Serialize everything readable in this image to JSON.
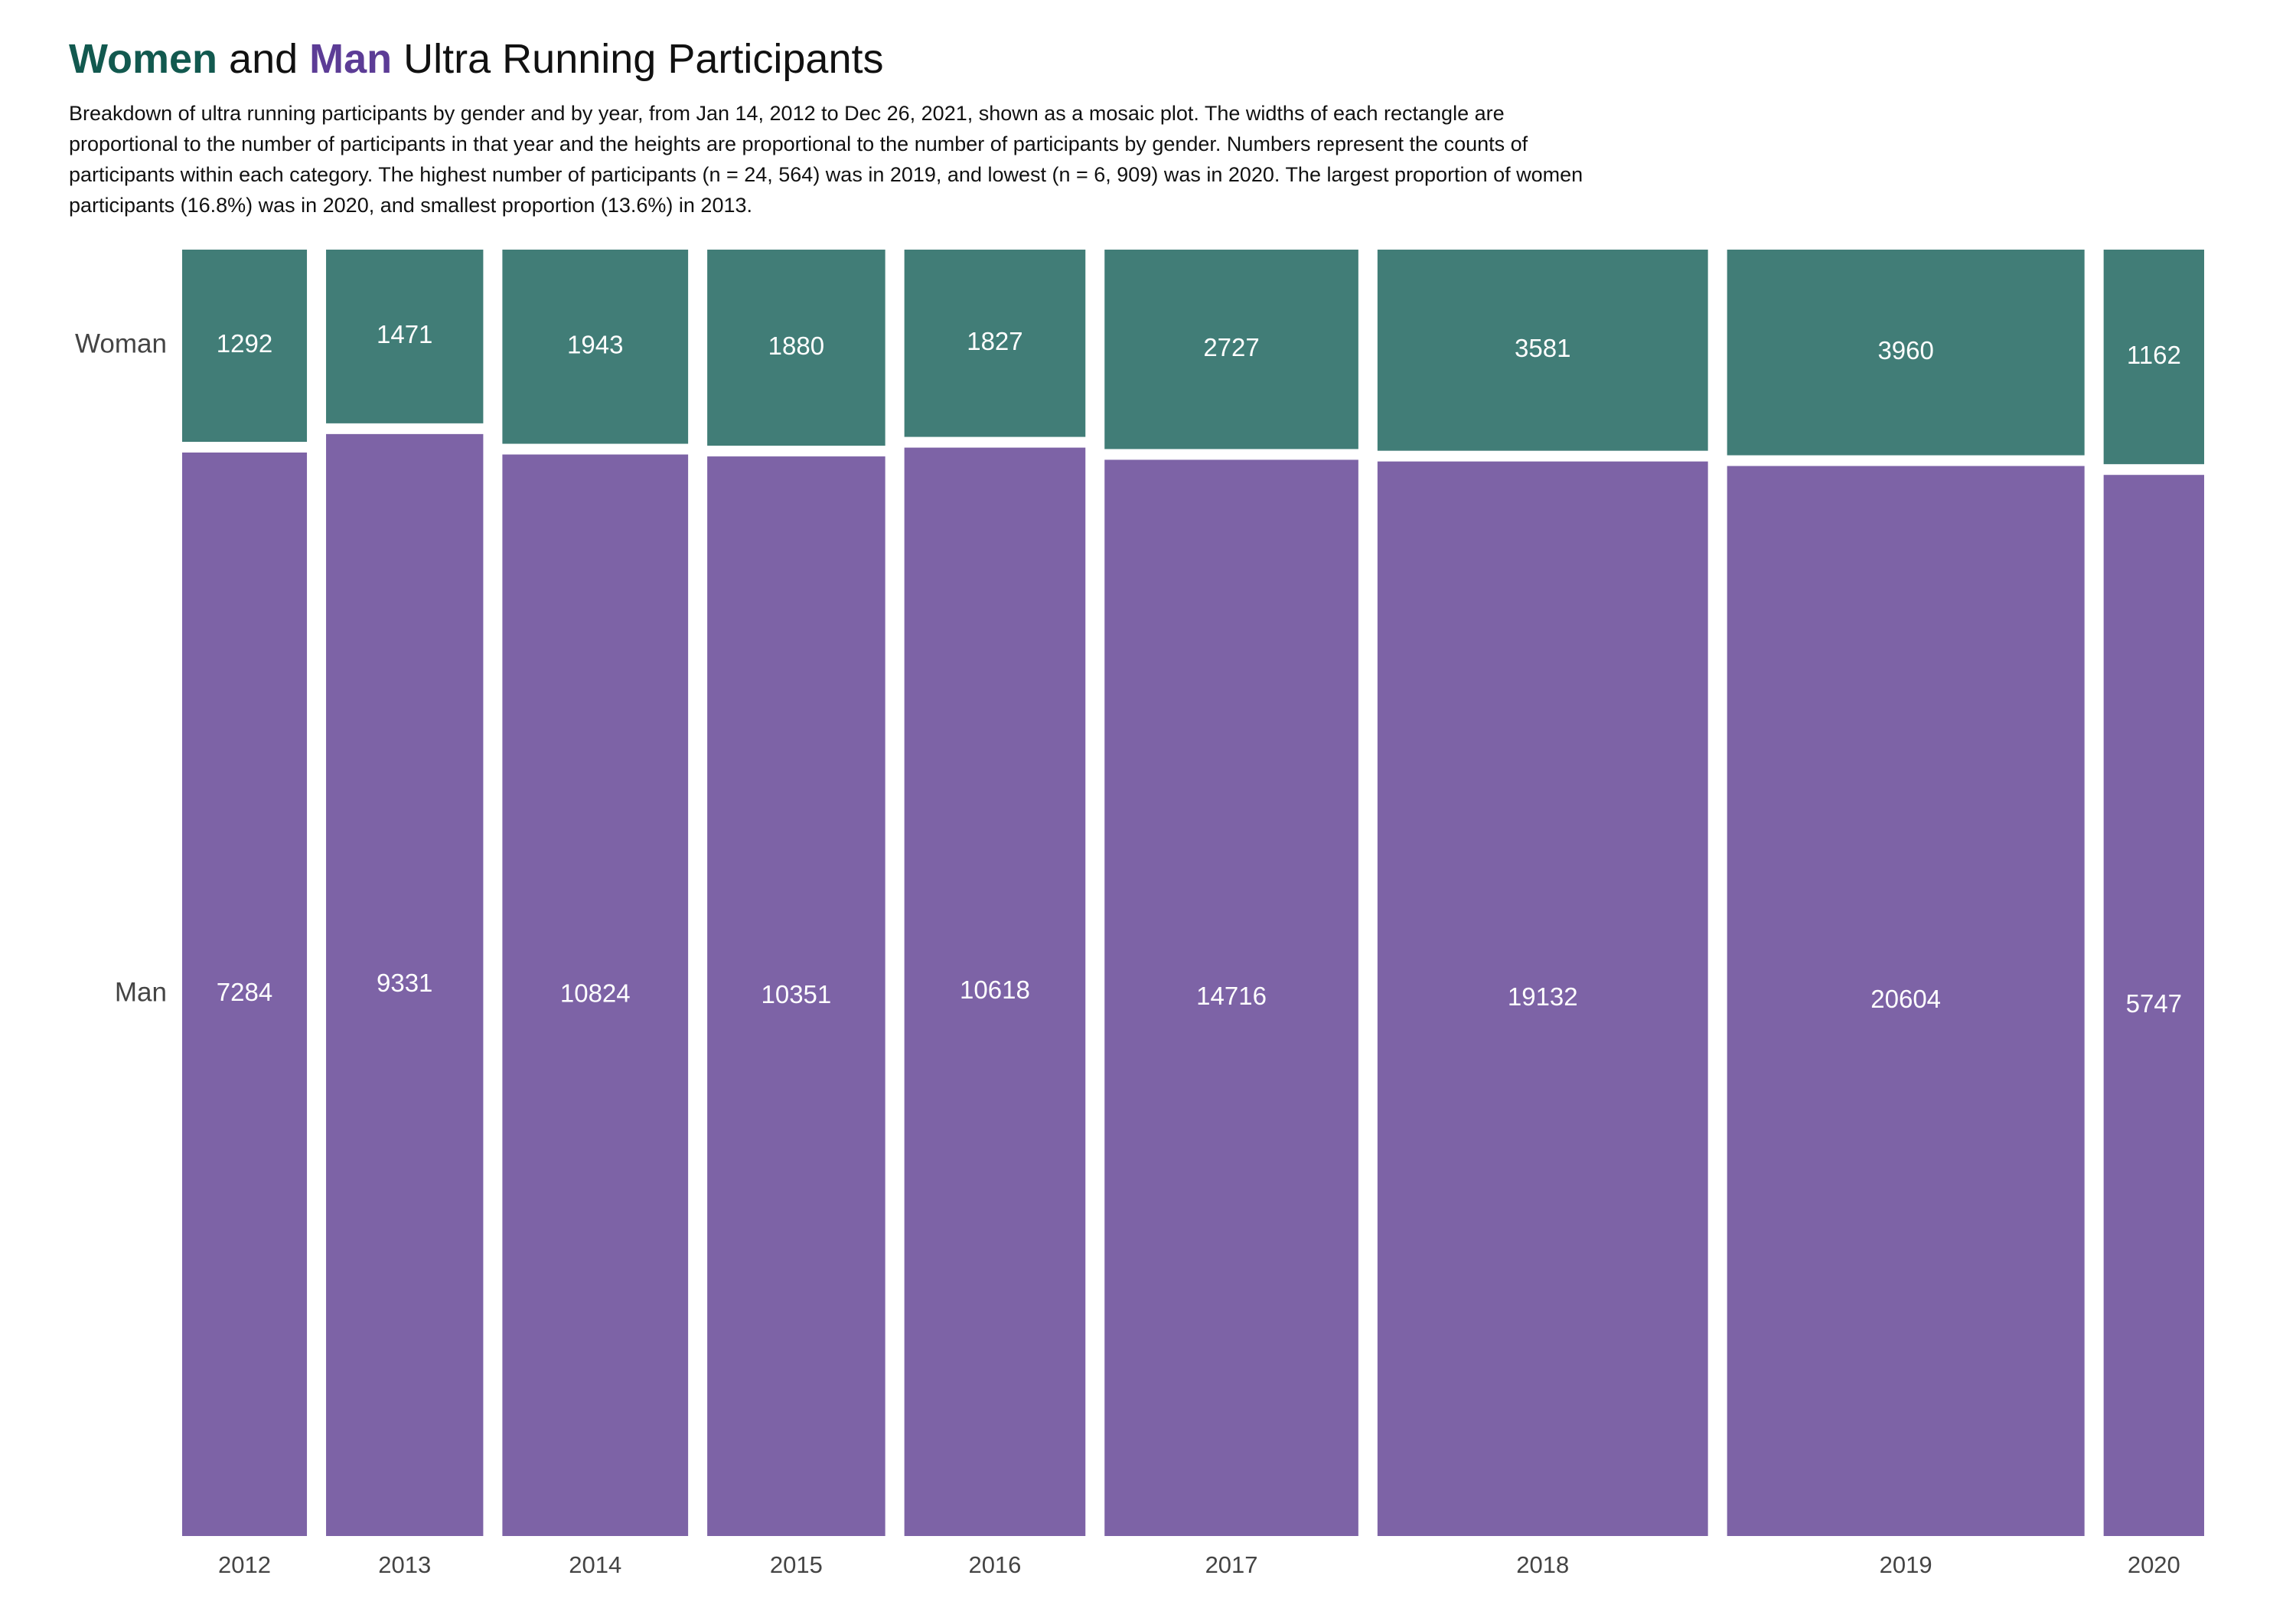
{
  "title": {
    "women": "Women",
    "and": "and",
    "man": "Man",
    "rest": "Ultra Running Participants"
  },
  "subtitle": "Breakdown of ultra running participants by gender and by year, from Jan 14, 2012 to Dec 26, 2021, shown as a mosaic plot. The widths of each rectangle are proportional to the number of participants in that year and the heights are proportional to the number of participants by gender. Numbers represent the counts of participants within each category. The highest number of participants (n = 24, 564) was in 2019, and lowest (n = 6, 909) was in 2020. The largest proportion of women participants (16.8%) was in 2020, and smallest proportion (13.6%) in 2013.",
  "colors": {
    "woman": "#417d77",
    "man": "#7d63a6",
    "title_women": "#12594f",
    "title_man": "#5c3c96"
  },
  "chart_data": {
    "type": "mosaic",
    "categories": [
      "2012",
      "2013",
      "2014",
      "2015",
      "2016",
      "2017",
      "2018",
      "2019",
      "2020"
    ],
    "series": [
      {
        "name": "Woman",
        "values": [
          1292,
          1471,
          1943,
          1880,
          1827,
          2727,
          3581,
          3960,
          1162
        ]
      },
      {
        "name": "Man",
        "values": [
          7284,
          9331,
          10824,
          10351,
          10618,
          14716,
          19132,
          20604,
          5747
        ]
      }
    ],
    "legend": "none",
    "grid": false
  }
}
